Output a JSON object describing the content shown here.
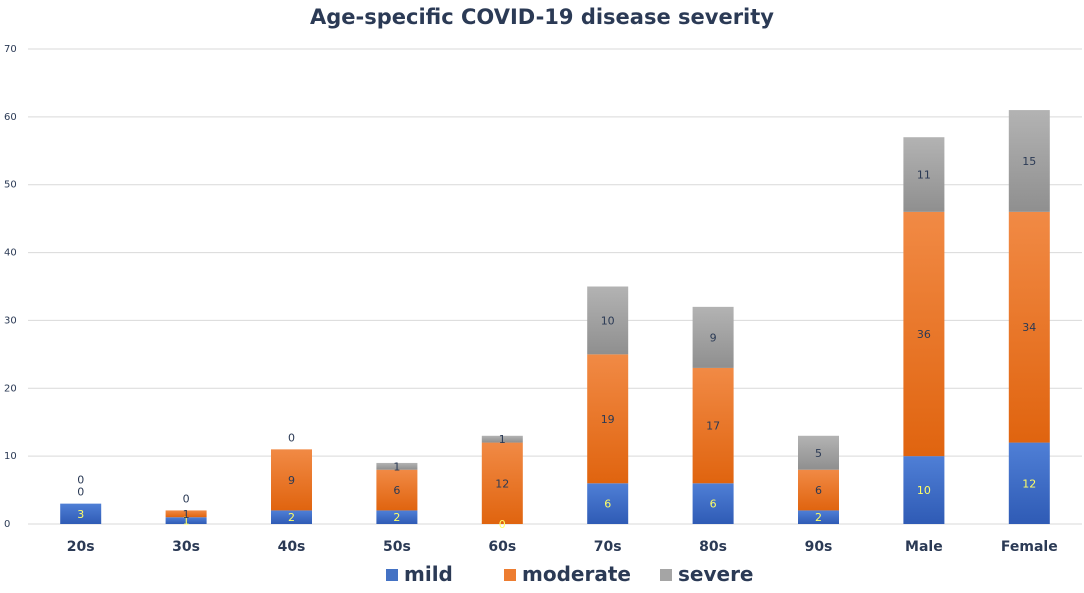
{
  "chart_data": {
    "type": "stacked-bar",
    "title": "Age-specific COVID-19 disease severity",
    "xlabel": "",
    "ylabel": "",
    "ylim": [
      0,
      70
    ],
    "yticks": [
      0,
      10,
      20,
      30,
      40,
      50,
      60,
      70
    ],
    "grid": true,
    "legend_position": "bottom",
    "categories": [
      "20s",
      "30s",
      "40s",
      "50s",
      "60s",
      "70s",
      "80s",
      "90s",
      "Male",
      "Female"
    ],
    "series": [
      {
        "name": "mild",
        "color": "#4472c4",
        "values": [
          3,
          1,
          2,
          2,
          0,
          6,
          6,
          2,
          10,
          12
        ]
      },
      {
        "name": "moderate",
        "color": "#ed7d31",
        "values": [
          0,
          1,
          9,
          6,
          12,
          19,
          17,
          6,
          36,
          34
        ]
      },
      {
        "name": "severe",
        "color": "#a5a5a5",
        "values": [
          0,
          0,
          0,
          1,
          1,
          10,
          9,
          5,
          11,
          15
        ]
      }
    ]
  }
}
